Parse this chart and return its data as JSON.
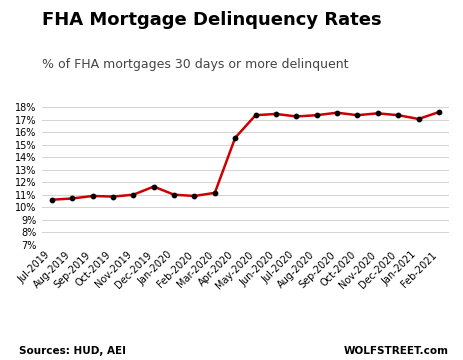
{
  "title": "FHA Mortgage Delinquency Rates",
  "subtitle": "% of FHA mortgages 30 days or more delinquent",
  "source_left": "Sources: HUD, AEI",
  "source_right": "WOLFSTREET.com",
  "labels": [
    "Jul-2019",
    "Aug-2019",
    "Sep-2019",
    "Oct-2019",
    "Nov-2019",
    "Dec-2019",
    "Jan-2020",
    "Feb-2020",
    "Mar-2020",
    "Apr-2020",
    "May-2020",
    "Jun-2020",
    "Jul-2020",
    "Aug-2020",
    "Sep-2020",
    "Oct-2020",
    "Nov-2020",
    "Dec-2020",
    "Jan-2021",
    "Feb-2021"
  ],
  "values": [
    10.6,
    10.7,
    10.9,
    10.85,
    11.0,
    11.65,
    11.0,
    10.9,
    11.15,
    15.55,
    17.35,
    17.45,
    17.25,
    17.35,
    17.55,
    17.35,
    17.5,
    17.35,
    17.05,
    17.6
  ],
  "line_color": "#cc0000",
  "marker_color": "#000000",
  "ylim": [
    7,
    18.5
  ],
  "yticks": [
    7,
    8,
    9,
    10,
    11,
    12,
    13,
    14,
    15,
    16,
    17,
    18
  ],
  "background_color": "#ffffff",
  "grid_color": "#cccccc",
  "title_fontsize": 13,
  "subtitle_fontsize": 9,
  "source_fontsize": 7.5,
  "tick_fontsize": 7
}
